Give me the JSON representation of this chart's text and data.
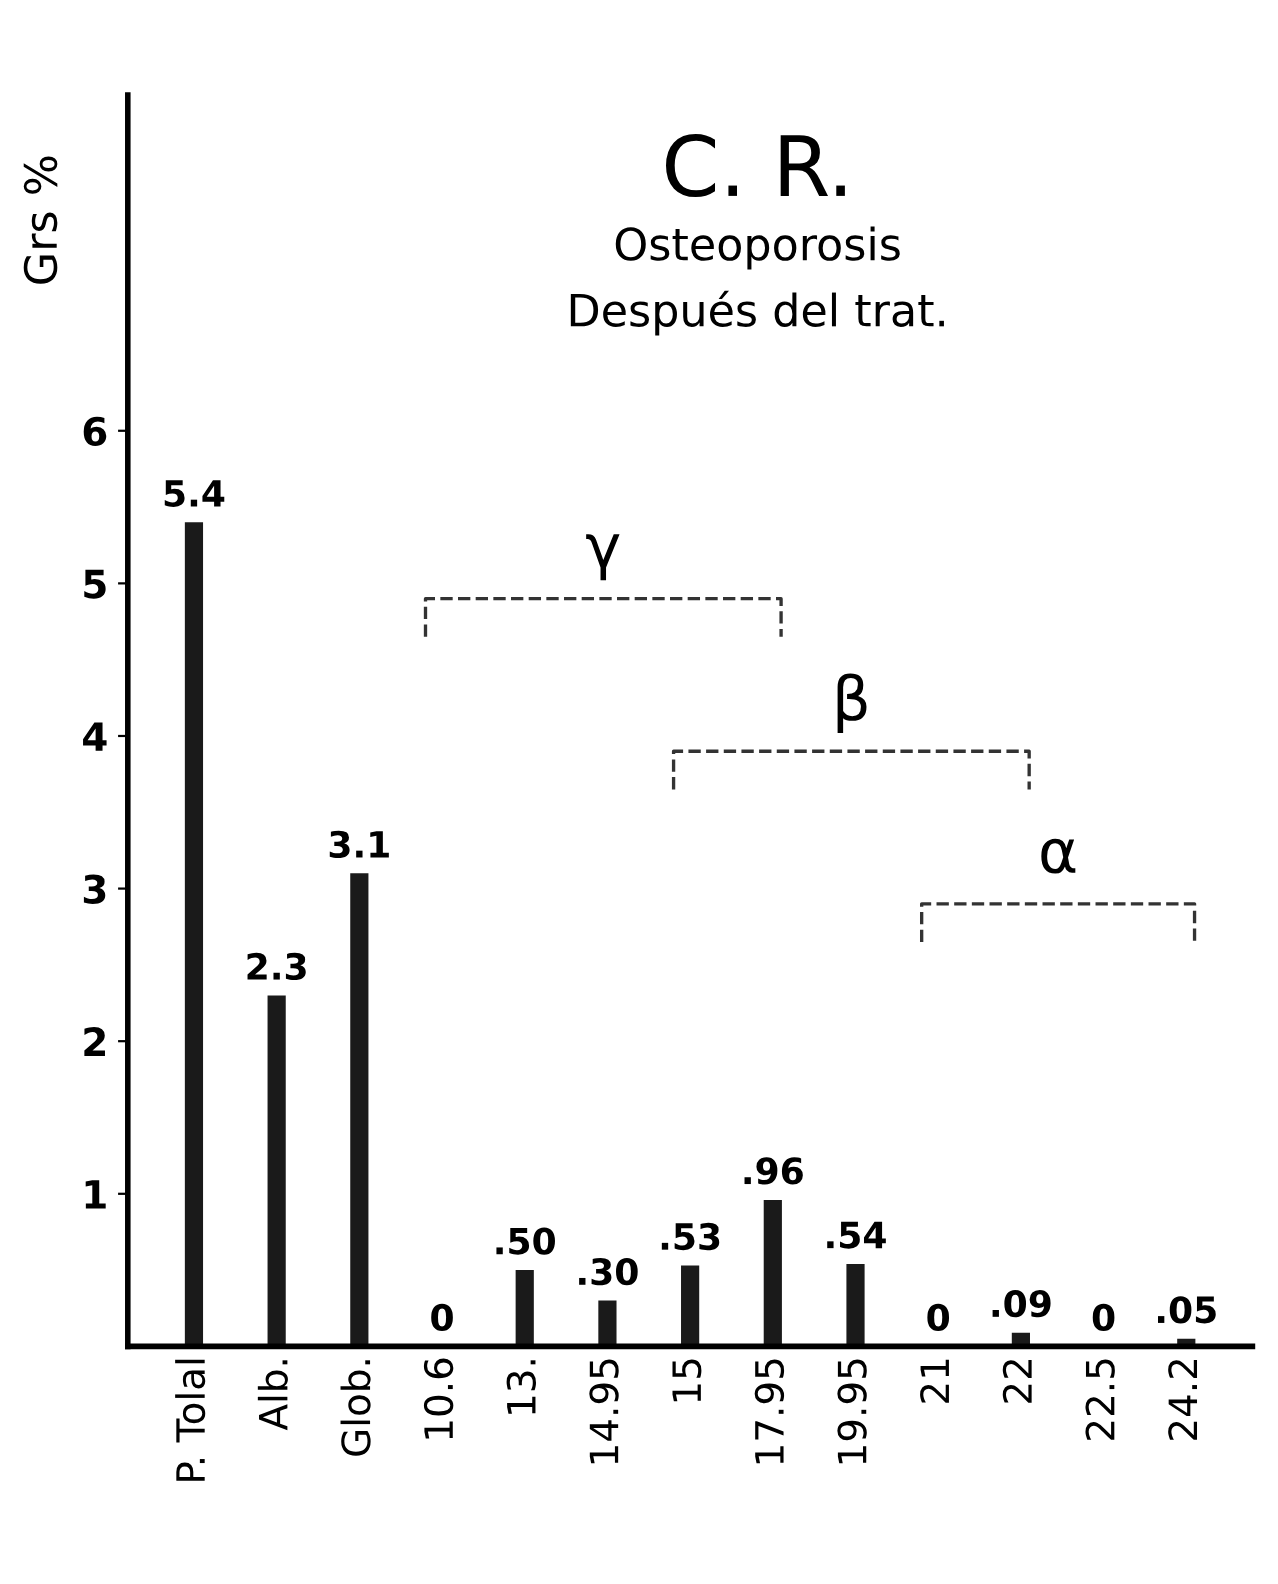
{
  "chart_data": {
    "type": "bar",
    "title": "C. R.",
    "subtitle": "Osteoporosis\nDespués del trat.",
    "ylabel": "Grs %",
    "categories": [
      "P. Tolal",
      "Alb.",
      "Glob.",
      "10.6",
      "13.",
      "14.95",
      "15",
      "17.95",
      "19.95",
      "21",
      "22",
      "22.5",
      "24.2"
    ],
    "values": [
      5.4,
      2.3,
      3.1,
      0,
      0.5,
      0.3,
      0.53,
      0.96,
      0.54,
      0,
      0.09,
      0,
      0.05
    ],
    "value_labels": [
      "5.4",
      "2.3",
      "3.1",
      "0",
      ".50",
      ".30",
      ".53",
      ".96",
      ".54",
      "0",
      ".09",
      "0",
      ".05"
    ],
    "color": "#1a1a1a",
    "ylim": [
      0,
      8.2
    ],
    "yticks": [
      1,
      2,
      3,
      4,
      5,
      6
    ],
    "annotations": [
      "γ",
      "β",
      "α"
    ],
    "grid": false
  }
}
